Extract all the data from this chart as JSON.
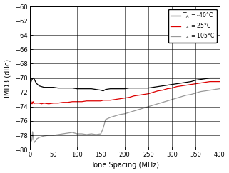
{
  "xlabel": "Tone Spacing (MHz)",
  "ylabel": "IMD3 (dBc)",
  "xlim": [
    0,
    400
  ],
  "ylim": [
    -80,
    -60
  ],
  "yticks": [
    -80,
    -78,
    -76,
    -74,
    -72,
    -70,
    -68,
    -66,
    -64,
    -62,
    -60
  ],
  "xticks": [
    0,
    50,
    100,
    150,
    200,
    250,
    300,
    350,
    400
  ],
  "legend": [
    {
      "label": "T$_A$ = -40°C",
      "color": "#000000"
    },
    {
      "label": "T$_A$ = 25°C",
      "color": "#dd0000"
    },
    {
      "label": "T$_A$ = 105°C",
      "color": "#999999"
    }
  ],
  "series": {
    "T_neg40": {
      "color": "#000000",
      "x": [
        1,
        2,
        3,
        4,
        5,
        6,
        7,
        8,
        9,
        10,
        12,
        15,
        20,
        25,
        30,
        40,
        50,
        60,
        70,
        80,
        90,
        100,
        110,
        120,
        130,
        140,
        150,
        155,
        160,
        170,
        180,
        190,
        200,
        210,
        220,
        230,
        240,
        250,
        260,
        270,
        280,
        290,
        300,
        310,
        320,
        330,
        340,
        350,
        360,
        370,
        380,
        390,
        400
      ],
      "y": [
        -71.2,
        -70.8,
        -70.5,
        -70.3,
        -70.2,
        -70.1,
        -70.0,
        -70.0,
        -70.1,
        -70.2,
        -70.5,
        -70.8,
        -71.1,
        -71.2,
        -71.3,
        -71.3,
        -71.3,
        -71.4,
        -71.4,
        -71.4,
        -71.4,
        -71.5,
        -71.5,
        -71.5,
        -71.5,
        -71.6,
        -71.7,
        -71.8,
        -71.6,
        -71.5,
        -71.5,
        -71.5,
        -71.5,
        -71.4,
        -71.4,
        -71.4,
        -71.4,
        -71.4,
        -71.3,
        -71.2,
        -71.1,
        -71.0,
        -70.9,
        -70.8,
        -70.7,
        -70.6,
        -70.5,
        -70.3,
        -70.2,
        -70.1,
        -70.0,
        -70.0,
        -70.0
      ]
    },
    "T_25": {
      "color": "#dd0000",
      "x": [
        1,
        2,
        3,
        4,
        5,
        6,
        7,
        8,
        9,
        10,
        12,
        15,
        20,
        25,
        30,
        40,
        50,
        60,
        70,
        80,
        90,
        100,
        110,
        120,
        130,
        140,
        150,
        155,
        160,
        170,
        180,
        190,
        200,
        210,
        220,
        230,
        240,
        250,
        260,
        270,
        280,
        290,
        300,
        310,
        320,
        330,
        340,
        350,
        360,
        370,
        380,
        390,
        400
      ],
      "y": [
        -72.5,
        -73.0,
        -73.3,
        -73.5,
        -73.6,
        -73.4,
        -73.3,
        -73.5,
        -73.6,
        -73.5,
        -73.5,
        -73.5,
        -73.5,
        -73.6,
        -73.5,
        -73.6,
        -73.5,
        -73.5,
        -73.4,
        -73.4,
        -73.3,
        -73.3,
        -73.3,
        -73.2,
        -73.2,
        -73.2,
        -73.2,
        -73.1,
        -73.1,
        -73.1,
        -73.0,
        -72.9,
        -72.8,
        -72.7,
        -72.5,
        -72.4,
        -72.3,
        -72.2,
        -72.0,
        -71.8,
        -71.7,
        -71.5,
        -71.4,
        -71.2,
        -71.1,
        -71.0,
        -70.9,
        -70.8,
        -70.7,
        -70.6,
        -70.5,
        -70.5,
        -70.5
      ]
    },
    "T_105": {
      "color": "#999999",
      "x": [
        1,
        2,
        3,
        4,
        5,
        6,
        7,
        8,
        9,
        10,
        12,
        15,
        20,
        25,
        30,
        40,
        50,
        60,
        70,
        80,
        90,
        100,
        110,
        120,
        130,
        140,
        150,
        155,
        160,
        170,
        180,
        190,
        200,
        210,
        220,
        230,
        240,
        250,
        260,
        270,
        280,
        290,
        300,
        310,
        320,
        330,
        340,
        350,
        360,
        370,
        380,
        390,
        400
      ],
      "y": [
        -77.5,
        -78.0,
        -78.5,
        -78.8,
        -78.5,
        -77.5,
        -78.0,
        -78.5,
        -78.8,
        -79.0,
        -78.8,
        -78.5,
        -78.3,
        -78.2,
        -78.1,
        -78.0,
        -78.0,
        -77.9,
        -77.8,
        -77.7,
        -77.6,
        -77.8,
        -77.8,
        -77.9,
        -77.8,
        -77.9,
        -77.8,
        -77.0,
        -75.8,
        -75.5,
        -75.3,
        -75.1,
        -75.0,
        -74.8,
        -74.6,
        -74.4,
        -74.2,
        -74.0,
        -73.8,
        -73.6,
        -73.4,
        -73.2,
        -73.0,
        -72.8,
        -72.6,
        -72.4,
        -72.3,
        -72.1,
        -71.9,
        -71.8,
        -71.7,
        -71.6,
        -71.5
      ]
    }
  },
  "background_color": "#ffffff",
  "linewidth": 0.9
}
